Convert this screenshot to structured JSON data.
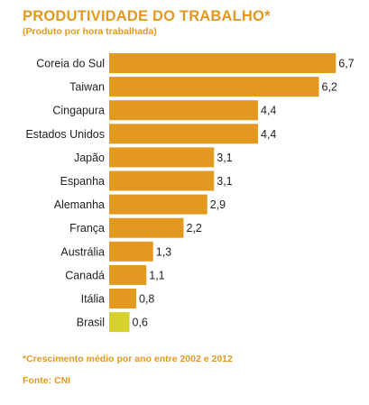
{
  "colors": {
    "bar": "#e3981f",
    "highlight": "#d6d12d",
    "text": "#e3981f",
    "label": "#222222"
  },
  "chart_data": {
    "type": "bar",
    "orientation": "horizontal",
    "title": "PRODUTIVIDADE DO TRABALHO*",
    "subtitle": "(Produto por hora trabalhada)",
    "categories": [
      "Coreia do Sul",
      "Taiwan",
      "Cingapura",
      "Estados Unidos",
      "Japão",
      "Espanha",
      "Alemanha",
      "França",
      "Austrália",
      "Canadá",
      "Itália",
      "Brasil"
    ],
    "values": [
      6.7,
      6.2,
      4.4,
      4.4,
      3.1,
      3.1,
      2.9,
      2.2,
      1.3,
      1.1,
      0.8,
      0.6
    ],
    "value_labels": [
      "6,7",
      "6,2",
      "4,4",
      "4,4",
      "3,1",
      "3,1",
      "2,9",
      "2,2",
      "1,3",
      "1,1",
      "0,8",
      "0,6"
    ],
    "highlight_category": "Brasil",
    "grid": false,
    "legend": "none"
  },
  "footnote": "*Crescimento médio por ano entre 2002 e 2012",
  "source": "Fonte: CNI"
}
